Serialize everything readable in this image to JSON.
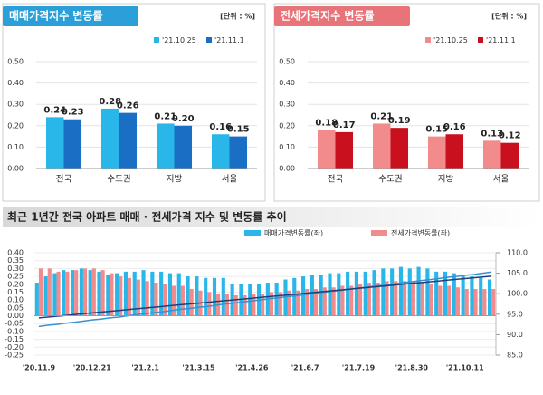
{
  "chart_data": [
    {
      "type": "bar",
      "title": "매매가격지수 변동률",
      "unit": "[단위 : %]",
      "categories": [
        "전국",
        "수도권",
        "지방",
        "서울"
      ],
      "series": [
        {
          "name": "'21.10.25",
          "color": "#29b6e8",
          "values": [
            0.24,
            0.28,
            0.21,
            0.16
          ],
          "value_labels": [
            "0.24",
            "0.28",
            "0.21",
            "0.16"
          ]
        },
        {
          "name": "'21.11.1",
          "color": "#1a6fc4",
          "values": [
            0.23,
            0.26,
            0.2,
            0.15
          ],
          "value_labels": [
            "0.23",
            "0.26",
            "0.20",
            "0.15"
          ]
        }
      ],
      "ylim": [
        0,
        0.5
      ],
      "yticks": [
        {
          "value": 0,
          "label": "0.00"
        },
        {
          "value": 0.1,
          "label": "0.10"
        },
        {
          "value": 0.2,
          "label": "0.20"
        },
        {
          "value": 0.3,
          "label": "0.30"
        },
        {
          "value": 0.4,
          "label": "0.40"
        },
        {
          "value": 0.5,
          "label": "0.50"
        }
      ],
      "header_color": "#2a9fd8"
    },
    {
      "type": "bar",
      "title": "전세가격지수 변동률",
      "unit": "[단위 : %]",
      "categories": [
        "전국",
        "수도권",
        "지방",
        "서울"
      ],
      "series": [
        {
          "name": "'21.10.25",
          "color": "#f28b8b",
          "values": [
            0.18,
            0.21,
            0.15,
            0.13
          ],
          "value_labels": [
            "0.18",
            "0.21",
            "0.15",
            "0.13"
          ]
        },
        {
          "name": "'21.11.1",
          "color": "#c8101e",
          "values": [
            0.17,
            0.19,
            0.16,
            0.12
          ],
          "value_labels": [
            "0.17",
            "0.19",
            "0.16",
            "0.12"
          ]
        }
      ],
      "ylim": [
        0,
        0.5
      ],
      "yticks": [
        {
          "value": 0,
          "label": "0.00"
        },
        {
          "value": 0.1,
          "label": "0.10"
        },
        {
          "value": 0.2,
          "label": "0.20"
        },
        {
          "value": 0.3,
          "label": "0.30"
        },
        {
          "value": 0.4,
          "label": "0.40"
        },
        {
          "value": 0.5,
          "label": "0.50"
        }
      ],
      "header_color": "#e8747a"
    },
    {
      "type": "combo",
      "title": "최근 1년간 전국 아파트 매매 · 전세가격 지수 및 변동률 추이",
      "categories": [
        "'20.11.9",
        null,
        null,
        null,
        null,
        null,
        "'20.12.21",
        null,
        null,
        null,
        null,
        null,
        "'21.2.1",
        null,
        null,
        null,
        null,
        null,
        "'21.3.15",
        null,
        null,
        null,
        null,
        null,
        "'21.4.26",
        null,
        null,
        null,
        null,
        null,
        "'21.6.7",
        null,
        null,
        null,
        null,
        null,
        "'21.7.19",
        null,
        null,
        null,
        null,
        null,
        "'21.8.30",
        null,
        null,
        null,
        null,
        null,
        "'21.10.11",
        null,
        null,
        null
      ],
      "series": [
        {
          "name": "매매가격변동률(좌)",
          "color": "#29b6e8",
          "values": [
            0.21,
            0.25,
            0.27,
            0.29,
            0.29,
            0.3,
            0.29,
            0.28,
            0.26,
            0.27,
            0.28,
            0.28,
            0.29,
            0.28,
            0.28,
            0.27,
            0.27,
            0.25,
            0.25,
            0.24,
            0.24,
            0.24,
            0.2,
            0.2,
            0.2,
            0.2,
            0.21,
            0.21,
            0.23,
            0.24,
            0.25,
            0.26,
            0.26,
            0.27,
            0.27,
            0.28,
            0.28,
            0.28,
            0.29,
            0.3,
            0.3,
            0.31,
            0.3,
            0.31,
            0.3,
            0.28,
            0.28,
            0.27,
            0.26,
            0.25,
            0.24,
            0.23
          ]
        },
        {
          "name": "전세가격변동률(좌)",
          "color": "#f28b8b",
          "values": [
            0.3,
            0.3,
            0.28,
            0.28,
            0.29,
            0.3,
            0.3,
            0.29,
            0.27,
            0.25,
            0.24,
            0.23,
            0.22,
            0.21,
            0.2,
            0.19,
            0.19,
            0.17,
            0.16,
            0.15,
            0.14,
            0.14,
            0.13,
            0.13,
            0.14,
            0.14,
            0.15,
            0.15,
            0.16,
            0.16,
            0.17,
            0.17,
            0.18,
            0.18,
            0.19,
            0.19,
            0.2,
            0.21,
            0.21,
            0.22,
            0.22,
            0.22,
            0.22,
            0.21,
            0.2,
            0.19,
            0.19,
            0.18,
            0.17,
            0.17,
            0.17,
            0.17
          ]
        },
        {
          "axis": "y2",
          "color": "#3a8fd0",
          "values": [
            92.0,
            92.3,
            92.5,
            92.8,
            93.0,
            93.3,
            93.6,
            93.8,
            94.1,
            94.3,
            94.6,
            94.9,
            95.1,
            95.4,
            95.6,
            95.9,
            96.2,
            96.4,
            96.7,
            96.9,
            97.2,
            97.5,
            97.7,
            98.0,
            98.2,
            98.5,
            98.8,
            99.0,
            99.3,
            99.5,
            99.8,
            100.1,
            100.3,
            100.6,
            100.8,
            101.1,
            101.4,
            101.6,
            101.9,
            102.1,
            102.4,
            102.7,
            102.9,
            103.2,
            103.4,
            103.7,
            104.0,
            104.2,
            104.5,
            104.7,
            105.0,
            105.3
          ]
        },
        {
          "axis": "y2",
          "color": "#1f3f7a",
          "values": [
            94.1,
            94.3,
            94.5,
            94.7,
            94.9,
            95.1,
            95.3,
            95.5,
            95.7,
            95.9,
            96.1,
            96.3,
            96.5,
            96.7,
            96.9,
            97.1,
            97.3,
            97.5,
            97.7,
            97.9,
            98.1,
            98.3,
            98.5,
            98.7,
            98.9,
            99.1,
            99.3,
            99.5,
            99.7,
            99.9,
            100.1,
            100.3,
            100.5,
            100.7,
            100.9,
            101.1,
            101.3,
            101.5,
            101.7,
            101.9,
            102.1,
            102.3,
            102.5,
            102.7,
            102.9,
            103.1,
            103.3,
            103.5,
            103.7,
            103.9,
            104.1,
            104.3
          ]
        }
      ],
      "ylim": [
        -0.25,
        0.4
      ],
      "yticks": [
        {
          "value": 0.4,
          "label": "0.40"
        },
        {
          "value": 0.35,
          "label": "0.35"
        },
        {
          "value": 0.3,
          "label": "0.30"
        },
        {
          "value": 0.25,
          "label": "0.25"
        },
        {
          "value": 0.2,
          "label": "0.20"
        },
        {
          "value": 0.15,
          "label": "0.15"
        },
        {
          "value": 0.1,
          "label": "0.10"
        },
        {
          "value": 0.05,
          "label": "0.05"
        },
        {
          "value": 0,
          "label": "0.00"
        },
        {
          "value": -0.05,
          "label": "-0.05"
        },
        {
          "value": -0.1,
          "label": "-0.10"
        },
        {
          "value": -0.15,
          "label": "-0.15"
        },
        {
          "value": -0.2,
          "label": "-0.20"
        },
        {
          "value": -0.25,
          "label": "-0.25"
        }
      ],
      "y2lim": [
        85,
        110
      ],
      "y2ticks": [
        {
          "value": 110,
          "label": "110.0"
        },
        {
          "value": 105,
          "label": "105.0"
        },
        {
          "value": 100,
          "label": "100.0"
        },
        {
          "value": 95,
          "label": "95.0"
        },
        {
          "value": 90,
          "label": "90.0"
        },
        {
          "value": 85,
          "label": "85.0"
        }
      ]
    }
  ]
}
